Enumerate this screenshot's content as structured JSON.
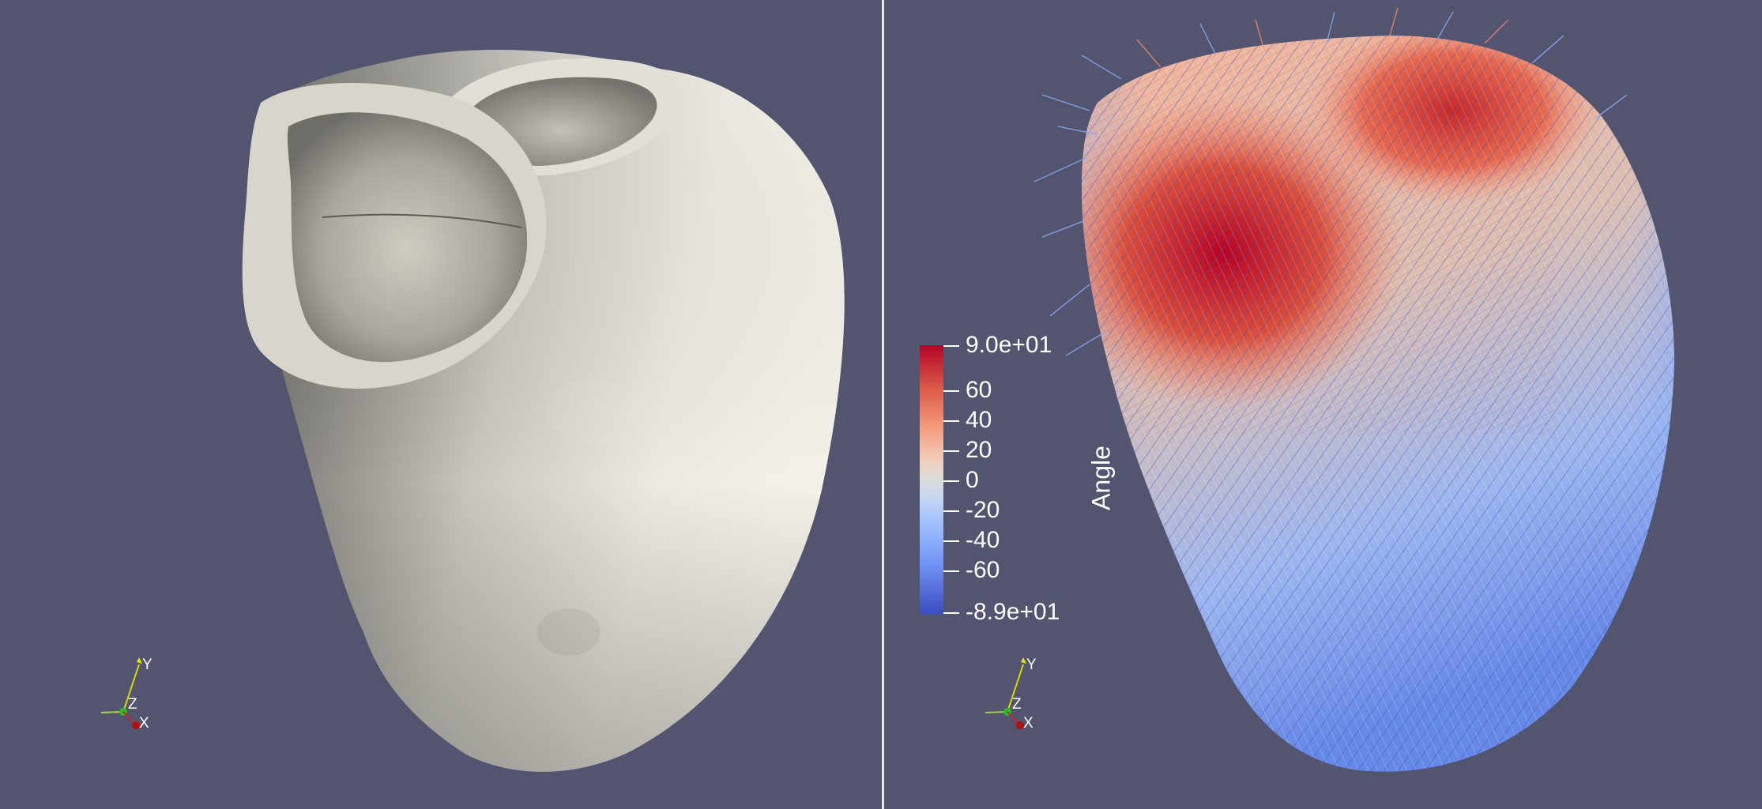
{
  "views": {
    "left": {
      "axes": {
        "y_label": "Y",
        "z_label": "Z",
        "x_label": "X"
      }
    },
    "right": {
      "axes": {
        "y_label": "Y",
        "z_label": "Z",
        "x_label": "X"
      },
      "color_legend": {
        "title": "Angle",
        "max_label": "9.0e+01",
        "min_label": "-8.9e+01",
        "range": [
          -89,
          90
        ],
        "colormap": [
          "#3b4cc0",
          "#dddcdc",
          "#b40426"
        ],
        "ticks": [
          "60",
          "40",
          "20",
          "0",
          "-20",
          "-40",
          "-60"
        ],
        "tick_values": [
          60,
          40,
          20,
          0,
          -20,
          -40,
          -60
        ]
      }
    }
  }
}
